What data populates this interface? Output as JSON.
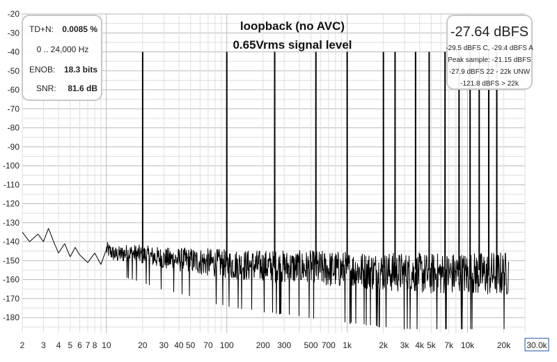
{
  "chart_data": {
    "type": "line",
    "title": "loopback (no AVC)",
    "subtitle": "0.65Vrms signal level",
    "xlabel": "",
    "ylabel": "",
    "xscale": "log",
    "xlim": [
      2,
      30000
    ],
    "ylim": [
      -188,
      -20
    ],
    "x_tick_labels": [
      "2",
      "3",
      "4",
      "5",
      "6",
      "7",
      "8",
      "10",
      "20",
      "30",
      "40",
      "50",
      "70",
      "100",
      "200",
      "300",
      "500",
      "700",
      "1k",
      "2k",
      "3k",
      "4k",
      "5k",
      "7k",
      "10k",
      "20k"
    ],
    "x_tick_values": [
      2,
      3,
      4,
      5,
      6,
      7,
      8,
      10,
      20,
      30,
      40,
      50,
      70,
      100,
      200,
      300,
      500,
      700,
      1000,
      2000,
      3000,
      4000,
      5000,
      7000,
      10000,
      20000
    ],
    "x_end_label": "30.0k",
    "y_tick_values": [
      -20,
      -30,
      -40,
      -50,
      -60,
      -70,
      -80,
      -90,
      -100,
      -110,
      -120,
      -130,
      -140,
      -150,
      -160,
      -170,
      -180
    ],
    "y_tick_labels": [
      "-20",
      "-30",
      "-40",
      "-50",
      "-60",
      "-70",
      "-80",
      "-90",
      "-100",
      "-110",
      "-120",
      "-130",
      "-140",
      "-150",
      "-160",
      "-170",
      "-180"
    ],
    "grid": true,
    "noise_floor": {
      "x": [
        2,
        2.3,
        2.7,
        3,
        3.3,
        3.7,
        4,
        4.5,
        5,
        5.5,
        6,
        7,
        8,
        9,
        10,
        12,
        15,
        20,
        30,
        50,
        100,
        200,
        500,
        1000,
        2000,
        5000,
        10000,
        22000
      ],
      "y": [
        -135,
        -140,
        -136,
        -140,
        -133,
        -141,
        -146,
        -141,
        -148,
        -143,
        -147,
        -151,
        -146,
        -152,
        -144,
        -147,
        -146,
        -147,
        -149,
        -150,
        -152,
        -153,
        -154,
        -155,
        -156,
        -157,
        -157,
        -157
      ]
    },
    "noise_spread_db": [
      {
        "x": 10,
        "spread": 8
      },
      {
        "x": 100,
        "spread": 16
      },
      {
        "x": 1000,
        "spread": 20
      },
      {
        "x": 22000,
        "spread": 24
      }
    ],
    "tones": {
      "x": [
        20,
        100,
        250,
        550,
        1000,
        2000,
        2500,
        3700,
        4800,
        6500,
        8500,
        10500,
        12500,
        15000,
        17500
      ],
      "y": [
        -40,
        -40,
        -40,
        -40,
        -40,
        -40,
        -40,
        -40,
        -40,
        -40,
        -40,
        -40,
        -40,
        -40,
        -40
      ]
    },
    "stats": [
      {
        "label": "TD+N:",
        "value": "0.0085 %"
      },
      {
        "label": "0 .. 24,000 Hz",
        "value": ""
      },
      {
        "label": "ENOB:",
        "value": "18.3 bits"
      },
      {
        "label": "SNR:",
        "value": "81.6 dB"
      }
    ],
    "peak_readout": {
      "main": "-27.64 dBFS",
      "lines": [
        "-29.5 dBFS C, -29.4 dBFS A",
        "Peak sample: -21.15 dBFS",
        "-27.9 dBFS 22 - 22k UNW",
        "-121.8 dBFS > 22k"
      ]
    }
  },
  "colors": {
    "trace": "#000000",
    "background": "#ffffff",
    "grid_major": "#b9b9b9",
    "grid_minor": "#dedede",
    "end_label_border": "#1a4fa0"
  }
}
